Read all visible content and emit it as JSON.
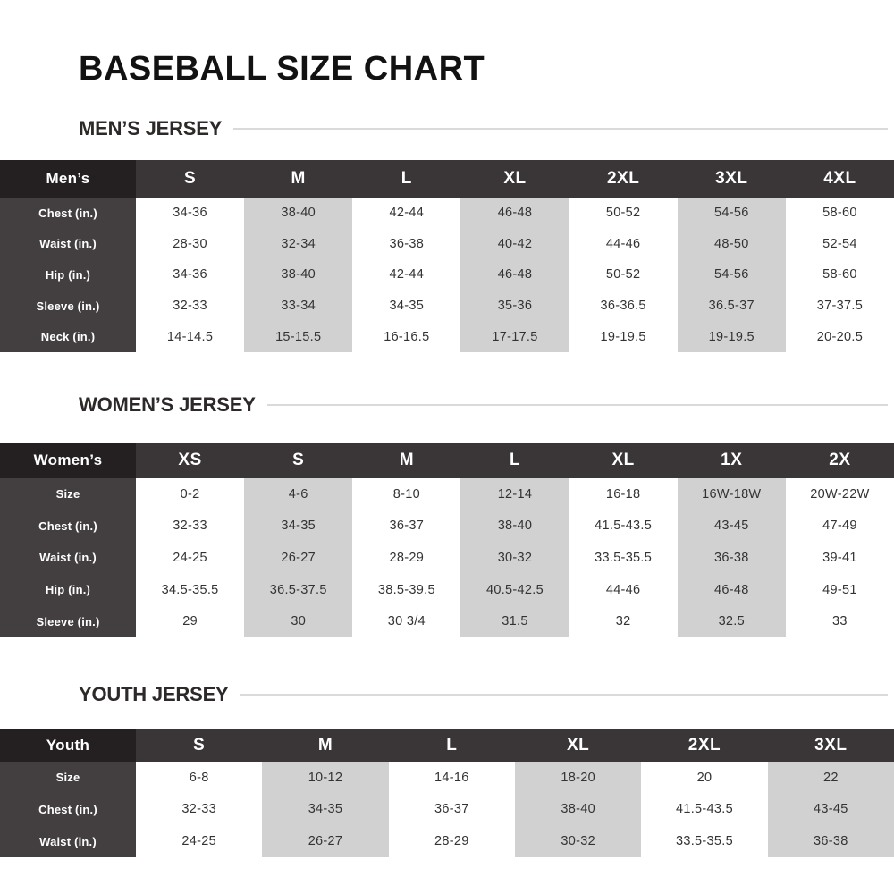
{
  "page": {
    "title": "BASEBALL SIZE CHART"
  },
  "colors": {
    "header_row_bg": "#3a3637",
    "corner_cell_bg": "#242021",
    "row_label_bg": "#433f40",
    "shaded_column_bg": "#d2d1d1",
    "heading_rule": "#dadada",
    "text_dark": "#333333",
    "text_light": "#ffffff"
  },
  "sections": [
    {
      "key": "mens-jersey",
      "heading": "MEN’S JERSEY",
      "corner": "Men’s",
      "columns": [
        "S",
        "M",
        "L",
        "XL",
        "2XL",
        "3XL",
        "4XL"
      ],
      "rows": [
        {
          "label": "Chest (in.)",
          "values": [
            "34-36",
            "38-40",
            "42-44",
            "46-48",
            "50-52",
            "54-56",
            "58-60"
          ]
        },
        {
          "label": "Waist (in.)",
          "values": [
            "28-30",
            "32-34",
            "36-38",
            "40-42",
            "44-46",
            "48-50",
            "52-54"
          ]
        },
        {
          "label": "Hip (in.)",
          "values": [
            "34-36",
            "38-40",
            "42-44",
            "46-48",
            "50-52",
            "54-56",
            "58-60"
          ]
        },
        {
          "label": "Sleeve (in.)",
          "values": [
            "32-33",
            "33-34",
            "34-35",
            "35-36",
            "36-36.5",
            "36.5-37",
            "37-37.5"
          ]
        },
        {
          "label": "Neck (in.)",
          "values": [
            "14-14.5",
            "15-15.5",
            "16-16.5",
            "17-17.5",
            "19-19.5",
            "19-19.5",
            "20-20.5"
          ]
        }
      ]
    },
    {
      "key": "womens-jersey",
      "heading": "WOMEN’S JERSEY",
      "corner": "Women’s",
      "columns": [
        "XS",
        "S",
        "M",
        "L",
        "XL",
        "1X",
        "2X"
      ],
      "rows": [
        {
          "label": "Size",
          "values": [
            "0-2",
            "4-6",
            "8-10",
            "12-14",
            "16-18",
            "16W-18W",
            "20W-22W"
          ]
        },
        {
          "label": "Chest (in.)",
          "values": [
            "32-33",
            "34-35",
            "36-37",
            "38-40",
            "41.5-43.5",
            "43-45",
            "47-49"
          ]
        },
        {
          "label": "Waist (in.)",
          "values": [
            "24-25",
            "26-27",
            "28-29",
            "30-32",
            "33.5-35.5",
            "36-38",
            "39-41"
          ]
        },
        {
          "label": "Hip (in.)",
          "values": [
            "34.5-35.5",
            "36.5-37.5",
            "38.5-39.5",
            "40.5-42.5",
            "44-46",
            "46-48",
            "49-51"
          ]
        },
        {
          "label": "Sleeve (in.)",
          "values": [
            "29",
            "30",
            "30 3/4",
            "31.5",
            "32",
            "32.5",
            "33"
          ]
        }
      ]
    },
    {
      "key": "youth-jersey",
      "heading": "YOUTH JERSEY",
      "corner": "Youth",
      "columns": [
        "S",
        "M",
        "L",
        "XL",
        "2XL",
        "3XL"
      ],
      "rows": [
        {
          "label": "Size",
          "values": [
            "6-8",
            "10-12",
            "14-16",
            "18-20",
            "20",
            "22"
          ]
        },
        {
          "label": "Chest (in.)",
          "values": [
            "32-33",
            "34-35",
            "36-37",
            "38-40",
            "41.5-43.5",
            "43-45"
          ]
        },
        {
          "label": "Waist (in.)",
          "values": [
            "24-25",
            "26-27",
            "28-29",
            "30-32",
            "33.5-35.5",
            "36-38"
          ]
        }
      ]
    }
  ]
}
